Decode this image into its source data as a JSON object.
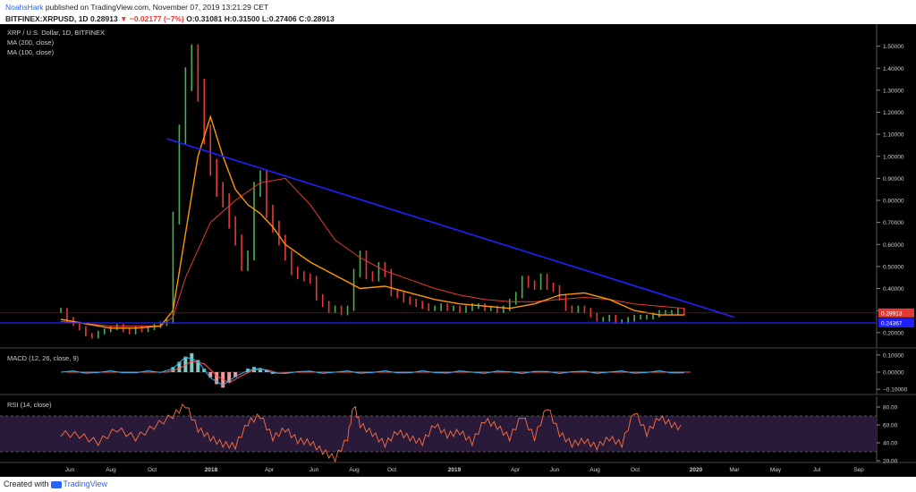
{
  "header": {
    "author": "NoahsHark",
    "published": "published on TradingView.com, November 07, 2019 13:21:29 CET",
    "symbol": "BITFINEX:XRPUSD, 1D",
    "price": "0.28913",
    "change_arrow": "▼",
    "change": "−0.02177 (−7%)",
    "open_label": "O:",
    "open": "0.31081",
    "high_label": "H:",
    "high": "0.31500",
    "low_label": "L:",
    "low": "0.27406",
    "close_label": "C:",
    "close": "0.28913"
  },
  "footer": {
    "created_with": "Created with",
    "brand": "TradingView"
  },
  "colors": {
    "background": "#000000",
    "candle_up": "#4caf50",
    "candle_down": "#e53935",
    "ma200": "#e53935",
    "ma100": "#ff9800",
    "trendline": "#2020ff",
    "support": "#2020ff",
    "macd_line": "#29b6f6",
    "signal_line": "#ff5252",
    "rsi_line": "#ff7043",
    "rsi_band": "#2a1a3a"
  },
  "chart_data": [
    {
      "type": "line",
      "panel": "price",
      "legend": [
        "XRP / U.S. Dollar, 1D, BITFINEX",
        "MA (200, close)",
        "MA (100, close)"
      ],
      "x": [
        "Jun",
        "Aug",
        "Oct",
        "2018",
        "Apr",
        "Jun",
        "Aug",
        "Oct",
        "2019",
        "Apr",
        "Jun",
        "Aug",
        "Oct",
        "2020",
        "Mar",
        "May",
        "Jul",
        "Sep"
      ],
      "y_ticks": [
        "1.50000",
        "1.40000",
        "1.30000",
        "1.20000",
        "1.10000",
        "1.00000",
        "0.90000",
        "0.80000",
        "0.70000",
        "0.60000",
        "0.50000",
        "0.40000",
        "0.30000",
        "0.20000"
      ],
      "ylim": [
        0.13,
        1.6
      ],
      "series": [
        {
          "name": "XRP / U.S. Dollar",
          "x": [
            0,
            1,
            2,
            3,
            4,
            5,
            6,
            7,
            8,
            9,
            10,
            11,
            12,
            13,
            14,
            15,
            16,
            17,
            18,
            19,
            20,
            21,
            22,
            23,
            24,
            25,
            26,
            27,
            28,
            29,
            30,
            31,
            32,
            33,
            34,
            35,
            36,
            37,
            38,
            39,
            40,
            41,
            42,
            43,
            44,
            45,
            46,
            47,
            48,
            49,
            50,
            51,
            52,
            53,
            54,
            55,
            56,
            57,
            58,
            59,
            60,
            61,
            62,
            63,
            64,
            65,
            66,
            67,
            68,
            69,
            70,
            71,
            72,
            73,
            74,
            75,
            76,
            77,
            78,
            79,
            80,
            81,
            82,
            83,
            84,
            85,
            86,
            87,
            88,
            89,
            90,
            91,
            92,
            93,
            94,
            95,
            96,
            97,
            98,
            99,
            100
          ],
          "values": [
            0.3,
            0.26,
            0.24,
            0.22,
            0.19,
            0.18,
            0.2,
            0.21,
            0.22,
            0.23,
            0.21,
            0.2,
            0.22,
            0.21,
            0.22,
            0.23,
            0.24,
            0.25,
            0.72,
            1.1,
            1.35,
            1.45,
            1.3,
            1.1,
            0.95,
            0.85,
            0.8,
            0.7,
            0.62,
            0.5,
            0.55,
            0.85,
            0.9,
            0.75,
            0.68,
            0.62,
            0.55,
            0.48,
            0.46,
            0.45,
            0.44,
            0.36,
            0.33,
            0.3,
            0.31,
            0.29,
            0.31,
            0.47,
            0.55,
            0.46,
            0.45,
            0.5,
            0.47,
            0.38,
            0.37,
            0.35,
            0.34,
            0.33,
            0.32,
            0.31,
            0.31,
            0.32,
            0.31,
            0.31,
            0.3,
            0.31,
            0.32,
            0.32,
            0.31,
            0.31,
            0.3,
            0.31,
            0.34,
            0.37,
            0.44,
            0.42,
            0.41,
            0.45,
            0.41,
            0.4,
            0.36,
            0.31,
            0.3,
            0.31,
            0.3,
            0.28,
            0.26,
            0.26,
            0.27,
            0.25,
            0.25,
            0.26,
            0.27,
            0.27,
            0.27,
            0.28,
            0.29,
            0.29,
            0.29,
            0.3,
            0.29
          ]
        },
        {
          "name": "MA (100, close)",
          "x": [
            0,
            4,
            8,
            12,
            16,
            18,
            20,
            22,
            24,
            26,
            28,
            30,
            32,
            34,
            36,
            40,
            44,
            48,
            52,
            56,
            60,
            64,
            68,
            72,
            76,
            80,
            84,
            88,
            92,
            96,
            100
          ],
          "values": [
            0.26,
            0.24,
            0.22,
            0.22,
            0.23,
            0.3,
            0.65,
            1.0,
            1.18,
            1.0,
            0.85,
            0.78,
            0.74,
            0.68,
            0.6,
            0.52,
            0.46,
            0.4,
            0.41,
            0.38,
            0.35,
            0.33,
            0.32,
            0.31,
            0.33,
            0.37,
            0.38,
            0.35,
            0.3,
            0.28,
            0.28
          ]
        },
        {
          "name": "MA (200, close)",
          "x": [
            0,
            8,
            16,
            18,
            20,
            24,
            28,
            32,
            36,
            40,
            44,
            48,
            52,
            56,
            60,
            64,
            68,
            72,
            76,
            80,
            84,
            88,
            92,
            96,
            100
          ],
          "values": [
            0.25,
            0.23,
            0.23,
            0.27,
            0.45,
            0.7,
            0.8,
            0.88,
            0.9,
            0.78,
            0.62,
            0.54,
            0.48,
            0.44,
            0.4,
            0.37,
            0.35,
            0.34,
            0.34,
            0.35,
            0.36,
            0.35,
            0.33,
            0.32,
            0.31
          ]
        },
        {
          "name": "trendline",
          "x": [
            17,
            108
          ],
          "values": [
            1.08,
            0.27
          ]
        },
        {
          "name": "support",
          "x": [
            0,
            128
          ],
          "values": [
            0.24367,
            0.24367
          ]
        }
      ],
      "markers": [
        {
          "label": "0.28913",
          "value": 0.28913,
          "color": "#e53935"
        },
        {
          "label": "0.24367",
          "value": 0.24367,
          "color": "#2020ff"
        }
      ]
    },
    {
      "type": "line",
      "panel": "macd",
      "legend": [
        "MACD (12, 26, close, 9)"
      ],
      "y_ticks": [
        "0.10000",
        "0.00000",
        "−0.10000"
      ],
      "ylim": [
        -0.13,
        0.13
      ],
      "series": [
        {
          "name": "histogram",
          "x": [
            18,
            19,
            20,
            21,
            22,
            23,
            24,
            25,
            26,
            27,
            28,
            29,
            30,
            31,
            32,
            33,
            34
          ],
          "values": [
            0.03,
            0.06,
            0.09,
            0.11,
            0.07,
            0.02,
            -0.03,
            -0.07,
            -0.09,
            -0.06,
            -0.03,
            0.0,
            0.02,
            0.03,
            0.02,
            0.01,
            -0.01
          ]
        }
      ]
    },
    {
      "type": "line",
      "panel": "rsi",
      "legend": [
        "RSI (14, close)"
      ],
      "y_ticks": [
        "80.00",
        "60.00",
        "40.00",
        "20.00"
      ],
      "ylim": [
        18,
        92
      ],
      "bands": [
        70,
        30
      ],
      "series": [
        {
          "name": "RSI",
          "x": [
            0,
            3,
            6,
            9,
            12,
            15,
            18,
            20,
            22,
            24,
            26,
            28,
            30,
            32,
            34,
            36,
            38,
            40,
            42,
            44,
            46,
            47,
            48,
            50,
            52,
            54,
            56,
            58,
            60,
            62,
            64,
            66,
            68,
            70,
            72,
            74,
            76,
            78,
            80,
            82,
            84,
            86,
            88,
            90,
            92,
            94,
            96,
            98,
            100
          ],
          "values": [
            50,
            48,
            40,
            55,
            45,
            58,
            70,
            82,
            55,
            45,
            38,
            36,
            62,
            70,
            45,
            55,
            42,
            40,
            30,
            22,
            45,
            82,
            60,
            50,
            38,
            52,
            45,
            40,
            60,
            48,
            52,
            40,
            65,
            58,
            45,
            70,
            45,
            80,
            50,
            38,
            42,
            35,
            45,
            38,
            75,
            50,
            68,
            60,
            55
          ]
        }
      ]
    }
  ]
}
